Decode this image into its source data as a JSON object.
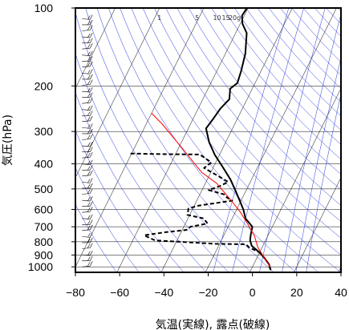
{
  "chart_data": {
    "type": "line",
    "title": "",
    "xlabel": "気温(実線), 露点(破線)",
    "ylabel": "気圧(hPa)",
    "xlim": [
      -80,
      40
    ],
    "ylim": [
      1050,
      100
    ],
    "y_scale": "log",
    "grid": true,
    "x_ticks": [
      -80,
      -60,
      -40,
      -20,
      0,
      20,
      40
    ],
    "x_tick_labels": [
      "−80",
      "−60",
      "−40",
      "−20",
      "0",
      "20",
      "40"
    ],
    "y_ticks": [
      100,
      200,
      300,
      400,
      500,
      600,
      700,
      800,
      900,
      1000
    ],
    "y_tick_labels": [
      "100",
      "200",
      "300",
      "400",
      "500",
      "600",
      "700",
      "800",
      "900",
      "1000"
    ],
    "mixing_ratio_labels": [
      {
        "text": "1",
        "x": -42
      },
      {
        "text": "5",
        "x": -25
      },
      {
        "text": "10",
        "x": -16
      },
      {
        "text": "15",
        "x": -12
      },
      {
        "text": "20g",
        "x": -8
      }
    ],
    "series": [
      {
        "role": "temperature",
        "style": "solid",
        "color": "#000000",
        "points": [
          [
            -60.5,
            100
          ],
          [
            -61,
            107
          ],
          [
            -59,
            115
          ],
          [
            -55,
            125
          ],
          [
            -51,
            150
          ],
          [
            -49,
            175
          ],
          [
            -48,
            195
          ],
          [
            -50,
            205
          ],
          [
            -48,
            225
          ],
          [
            -50,
            245
          ],
          [
            -51,
            270
          ],
          [
            -52,
            292
          ],
          [
            -47.5,
            330
          ],
          [
            -42,
            370
          ],
          [
            -36,
            410
          ],
          [
            -29.5,
            460
          ],
          [
            -25,
            505
          ],
          [
            -21,
            550
          ],
          [
            -17,
            600
          ],
          [
            -14,
            650
          ],
          [
            -9,
            700
          ],
          [
            -8,
            750
          ],
          [
            -7,
            790
          ],
          [
            -5,
            830
          ],
          [
            0,
            880
          ],
          [
            3.5,
            925
          ],
          [
            7,
            980
          ],
          [
            9,
            1030
          ]
        ]
      },
      {
        "role": "dewpoint",
        "style": "dashed",
        "color": "#000000",
        "points": [
          [
            -80.5,
            365
          ],
          [
            -64,
            367
          ],
          [
            -49,
            368
          ],
          [
            -42,
            395
          ],
          [
            -44,
            415
          ],
          [
            -40,
            430
          ],
          [
            -36,
            445
          ],
          [
            -30,
            470
          ],
          [
            -33,
            488
          ],
          [
            -37,
            505
          ],
          [
            -29,
            525
          ],
          [
            -27,
            540
          ],
          [
            -24,
            555
          ],
          [
            -38,
            580
          ],
          [
            -42,
            595
          ],
          [
            -41,
            630
          ],
          [
            -33,
            650
          ],
          [
            -30,
            680
          ],
          [
            -37,
            700
          ],
          [
            -38,
            720
          ],
          [
            -47,
            735
          ],
          [
            -56,
            755
          ],
          [
            -50,
            790
          ],
          [
            -22,
            815
          ],
          [
            -8,
            818
          ],
          [
            -6,
            840
          ],
          [
            0,
            880
          ],
          [
            3.5,
            925
          ],
          [
            7,
            980
          ],
          [
            9,
            1030
          ]
        ]
      },
      {
        "role": "parcel",
        "style": "solid",
        "color": "#ff0000",
        "points": [
          [
            -80,
            255
          ],
          [
            -73,
            280
          ],
          [
            -64,
            320
          ],
          [
            -57,
            355
          ],
          [
            -50,
            395
          ],
          [
            -44,
            432
          ],
          [
            -35,
            475
          ],
          [
            -25,
            550
          ],
          [
            -18,
            612
          ],
          [
            -12,
            680
          ],
          [
            -6,
            760
          ],
          [
            -2,
            840
          ],
          [
            3.5,
            925
          ],
          [
            8,
            1000
          ]
        ]
      }
    ],
    "colors": {
      "background": "#ffffff",
      "frame": "#000000",
      "isobar_grid": "#000000",
      "isotherm_grid": "#000000",
      "background_lines": "#2233dd",
      "temperature": "#000000",
      "dewpoint": "#000000",
      "parcel": "#ff0000",
      "wind_barbs": "#000000"
    },
    "wind_barbs": {
      "x": -77,
      "count": 42,
      "p_range": [
        1000,
        110
      ]
    }
  }
}
